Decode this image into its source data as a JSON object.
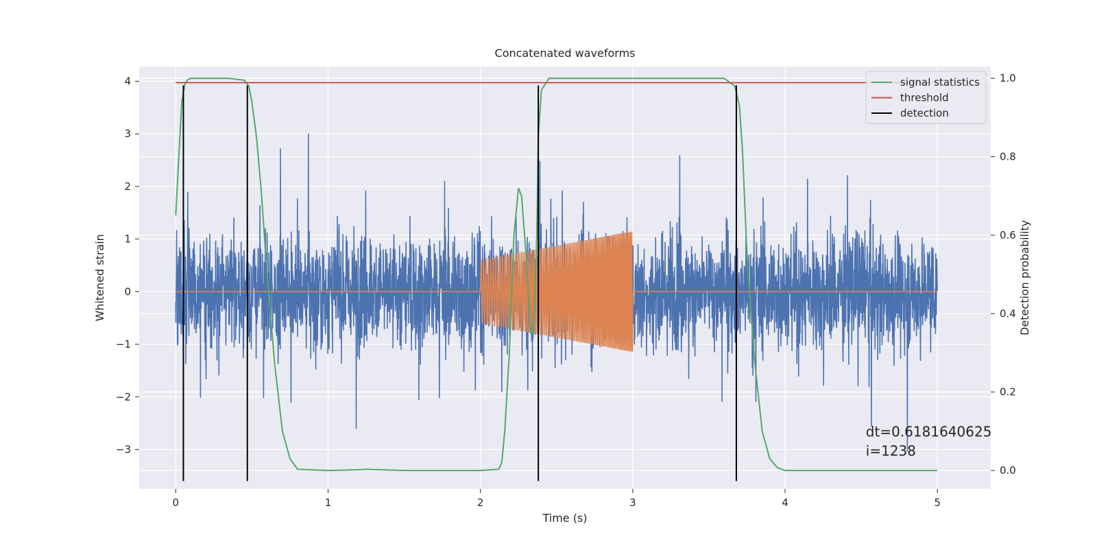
{
  "chart_data": {
    "type": "line",
    "title": "Concatenated waveforms",
    "xlabel": "Time (s)",
    "ylabel": "Whitened strain",
    "ylabel_right": "Detection probability",
    "xlim": [
      -0.24,
      5.35
    ],
    "ylim": [
      -3.75,
      4.28
    ],
    "ylim_right": [
      -0.047,
      1.03
    ],
    "xticks": [
      0,
      1,
      2,
      3,
      4,
      5
    ],
    "xtick_labels": [
      "0",
      "1",
      "2",
      "3",
      "4",
      "5"
    ],
    "yticks": [
      4,
      3,
      2,
      1,
      0,
      -1,
      -2,
      -3
    ],
    "ytick_labels": [
      "4",
      "3",
      "2",
      "1",
      "0",
      "−1",
      "−2",
      "−3"
    ],
    "yticks_right": [
      1.0,
      0.8,
      0.6,
      0.4,
      0.2,
      0.0
    ],
    "ytick_labels_right": [
      "1.0",
      "0.8",
      "0.6",
      "0.4",
      "0.2",
      "0.0"
    ],
    "grid": true,
    "legend_position": "top-right",
    "colors": {
      "background": "#eaeaf2",
      "grid": "#ffffff",
      "noise": "#4c72b0",
      "waveform": "#dd8452",
      "signal_statistics": "#55a868",
      "threshold": "#c44e52",
      "detection": "#000000"
    },
    "noise": {
      "x_range": [
        0,
        5
      ],
      "envelope_typical": 1.1,
      "envelope_peak": 3.8
    },
    "waveform": {
      "x_range": [
        2.0,
        3.0
      ],
      "start_amplitude": 0.6,
      "end_amplitude": 1.15
    },
    "series": [
      {
        "name": "signal statistics",
        "axis": "right",
        "x": [
          0.0,
          0.02,
          0.04,
          0.06,
          0.08,
          0.1,
          0.2,
          0.35,
          0.45,
          0.48,
          0.5,
          0.53,
          0.56,
          0.6,
          0.65,
          0.7,
          0.75,
          0.8,
          1.0,
          1.2,
          1.25,
          1.5,
          2.0,
          2.12,
          2.14,
          2.16,
          2.19,
          2.22,
          2.25,
          2.27,
          2.3,
          2.33,
          2.35,
          2.37,
          2.38,
          2.4,
          2.45,
          3.0,
          3.6,
          3.67,
          3.7,
          3.72,
          3.75,
          3.8,
          3.85,
          3.9,
          3.95,
          4.0,
          5.0
        ],
        "y": [
          0.65,
          0.8,
          0.94,
          0.985,
          0.997,
          1.0,
          1.0,
          1.0,
          0.995,
          0.98,
          0.94,
          0.85,
          0.72,
          0.5,
          0.27,
          0.1,
          0.03,
          0.003,
          0.0,
          0.002,
          0.003,
          0.0,
          0.0,
          0.003,
          0.02,
          0.1,
          0.3,
          0.6,
          0.72,
          0.7,
          0.55,
          0.35,
          0.35,
          0.6,
          0.85,
          0.97,
          1.0,
          1.0,
          1.0,
          0.98,
          0.93,
          0.82,
          0.55,
          0.28,
          0.1,
          0.03,
          0.007,
          0.0,
          0.0
        ]
      },
      {
        "name": "threshold",
        "axis": "right",
        "x": [
          0,
          5
        ],
        "y": [
          0.989,
          0.989
        ]
      },
      {
        "name": "detection",
        "axis": "left",
        "type": "vlines",
        "x": [
          0.05,
          0.47,
          2.38,
          3.68
        ],
        "ymin": -3.6,
        "ymax": 3.92
      }
    ],
    "annotation": "dt=0.6181640625\n i=1238"
  }
}
